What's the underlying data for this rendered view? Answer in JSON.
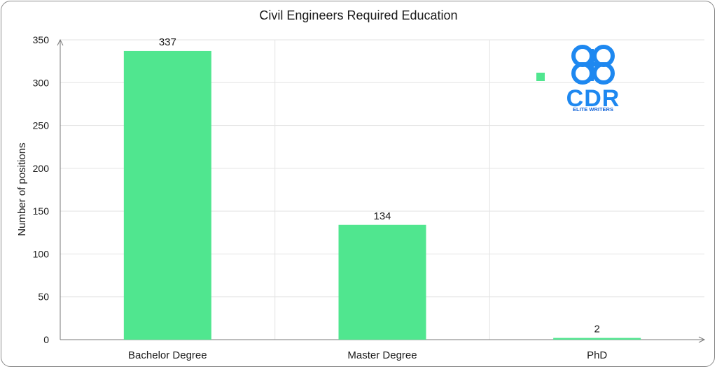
{
  "chart_data": {
    "type": "bar",
    "title": "Civil Engineers Required Education",
    "xlabel": "",
    "ylabel": "Number of positions",
    "categories": [
      "Bachelor Degree",
      "Master Degree",
      "PhD"
    ],
    "values": [
      337,
      134,
      2
    ],
    "data_labels": [
      "337",
      "134",
      "2"
    ],
    "ylim": [
      0,
      350
    ],
    "yticks": [
      0,
      50,
      100,
      150,
      200,
      250,
      300,
      350
    ],
    "grid": true,
    "bar_color": "#50e68f",
    "legend": {
      "placement": "top-right",
      "marker_color": "#50e68f"
    }
  },
  "logo": {
    "text": "CDR",
    "tagline": "ELITE WRITERS",
    "color": "#1e88f0",
    "tagline_color": "#1565d8"
  }
}
